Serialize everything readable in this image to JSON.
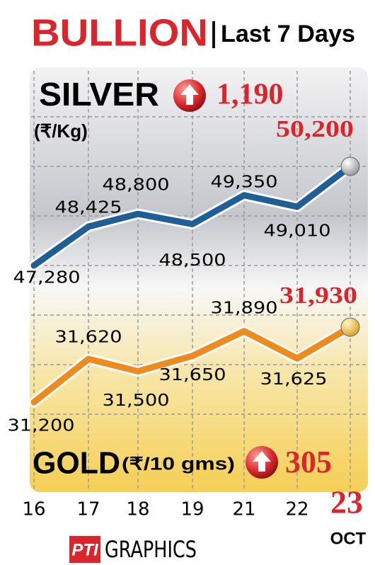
{
  "title": "BULLION",
  "subtitle": "Last 7 Days",
  "logo": "PTI",
  "credit": "GRAPHICS",
  "month": "OCT",
  "chart_data": [
    {
      "type": "line",
      "title": "SILVER",
      "unit": "(₹/Kg)",
      "change": 1190,
      "change_label": "1,190",
      "color": "#1f5f95",
      "categories": [
        "16",
        "17",
        "18",
        "19",
        "21",
        "22",
        "23"
      ],
      "values": [
        47280,
        48425,
        48800,
        48500,
        49350,
        49010,
        50200
      ],
      "value_labels": [
        "47,280",
        "48,425",
        "48,800",
        "48,500",
        "49,350",
        "49,010",
        "50,200"
      ]
    },
    {
      "type": "line",
      "title": "GOLD",
      "unit": "(₹/10 gms)",
      "change": 305,
      "change_label": "305",
      "color": "#ef8a1f",
      "values": [
        31200,
        31620,
        31500,
        31650,
        31890,
        31625,
        31930
      ],
      "value_labels": [
        "31,200",
        "31,620",
        "31,500",
        "31,650",
        "31,890",
        "31,625",
        "31,930"
      ]
    }
  ]
}
